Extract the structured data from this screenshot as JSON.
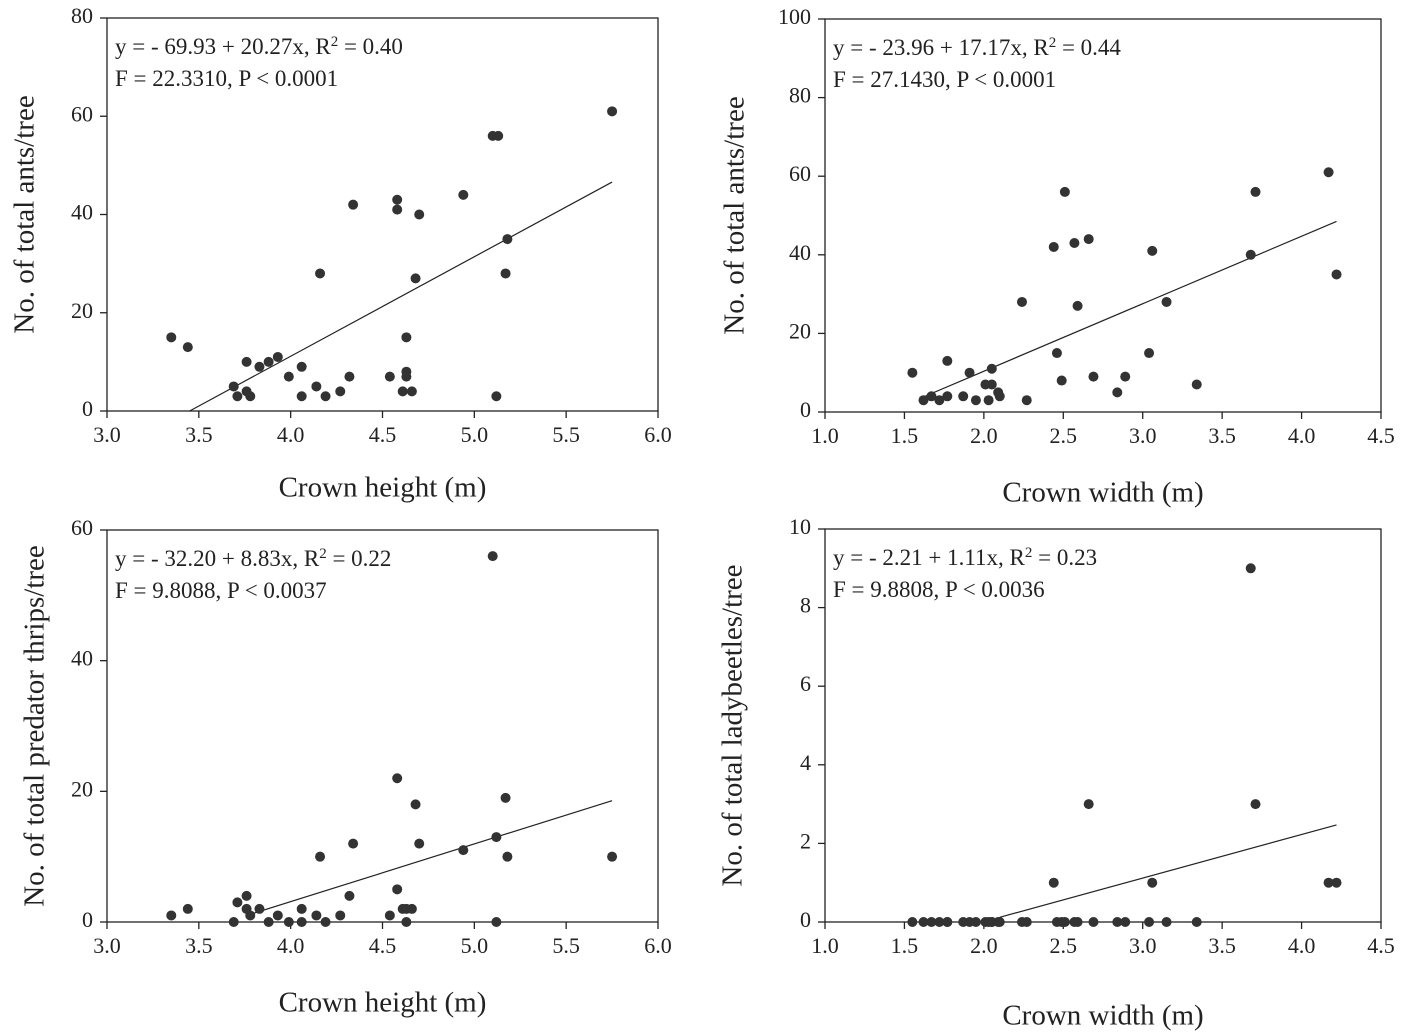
{
  "chart_data": [
    {
      "type": "scatter",
      "xlabel": "Crown height (m)",
      "ylabel": "No. of  total ants/tree",
      "equation": [
        "y = - 69.93 + 20.27x, R",
        "2",
        " = 0.40"
      ],
      "stats": "F = 22.3310, P < 0.0001",
      "xlim": [
        3,
        6
      ],
      "ylim": [
        0,
        80
      ],
      "xticks": [
        {
          "value": 3,
          "label": "3.0"
        },
        {
          "value": 3.5,
          "label": "3.5"
        },
        {
          "value": 4,
          "label": "4.0"
        },
        {
          "value": 4.5,
          "label": "4.5"
        },
        {
          "value": 5,
          "label": "5.0"
        },
        {
          "value": 5.5,
          "label": "5.5"
        },
        {
          "value": 6,
          "label": "6.0"
        }
      ],
      "yticks": [
        0,
        20,
        40,
        60,
        80
      ],
      "color": "#333333",
      "x": [
        3.35,
        3.44,
        3.69,
        3.71,
        3.76,
        3.76,
        3.78,
        3.83,
        3.88,
        3.93,
        3.99,
        4.06,
        4.06,
        4.14,
        4.16,
        4.19,
        4.27,
        4.32,
        4.34,
        4.54,
        4.58,
        4.58,
        4.61,
        4.63,
        4.63,
        4.63,
        4.66,
        4.68,
        4.7,
        4.94,
        5.1,
        5.13,
        5.12,
        5.17,
        5.18,
        5.75
      ],
      "values": [
        15,
        13,
        5,
        3,
        10,
        4,
        3,
        9,
        10,
        11,
        7,
        9,
        3,
        5,
        28,
        3,
        4,
        7,
        42,
        7,
        43,
        41,
        4,
        15,
        7,
        8,
        4,
        27,
        40,
        44,
        56,
        56,
        3,
        28,
        35,
        61
      ],
      "fit_line": {
        "x": [
          3.45,
          5.75
        ],
        "y": [
          0,
          46.6
        ]
      }
    },
    {
      "type": "scatter",
      "xlabel": "Crown width (m)",
      "ylabel": "No. of  total ants/tree",
      "equation": [
        "y = - 23.96 + 17.17x, R",
        "2",
        " = 0.44"
      ],
      "stats": "F = 27.1430, P <  0.0001",
      "xlim": [
        1,
        4.5
      ],
      "ylim": [
        0,
        100
      ],
      "xticks": [
        {
          "value": 1,
          "label": "1.0"
        },
        {
          "value": 1.5,
          "label": "1.5"
        },
        {
          "value": 2,
          "label": "2.0"
        },
        {
          "value": 2.5,
          "label": "2.5"
        },
        {
          "value": 3,
          "label": "3.0"
        },
        {
          "value": 3.5,
          "label": "3.5"
        },
        {
          "value": 4,
          "label": "4.0"
        },
        {
          "value": 4.5,
          "label": "4.5"
        }
      ],
      "yticks": [
        0,
        20,
        40,
        60,
        80,
        100
      ],
      "color": "#333333",
      "x": [
        1.55,
        1.62,
        1.67,
        1.72,
        1.77,
        1.77,
        1.87,
        1.91,
        1.95,
        2.01,
        2.03,
        2.05,
        2.05,
        2.09,
        2.1,
        2.24,
        2.27,
        2.44,
        2.46,
        2.49,
        2.51,
        2.57,
        2.59,
        2.66,
        2.69,
        2.84,
        2.89,
        3.04,
        3.06,
        3.15,
        3.34,
        3.68,
        3.71,
        4.17,
        4.22
      ],
      "values": [
        10,
        3,
        4,
        3,
        4,
        13,
        4,
        10,
        3,
        7,
        3,
        7,
        11,
        5,
        4,
        28,
        3,
        42,
        15,
        8,
        56,
        43,
        27,
        44,
        9,
        5,
        9,
        15,
        41,
        28,
        7,
        40,
        56,
        61,
        35
      ],
      "fit_line": {
        "x": [
          1.6,
          4.22
        ],
        "y": [
          3.5,
          48.5
        ]
      }
    },
    {
      "type": "scatter",
      "xlabel": "Crown height (m)",
      "ylabel": "No. of  total predator thrips/tree",
      "equation": [
        "y = - 32.20 + 8.83x, R",
        "2",
        " =  0.22"
      ],
      "stats": "F = 9.8088, P < 0.0037",
      "xlim": [
        3,
        6
      ],
      "ylim": [
        0,
        60
      ],
      "xticks": [
        {
          "value": 3,
          "label": "3.0"
        },
        {
          "value": 3.5,
          "label": "3.5"
        },
        {
          "value": 4,
          "label": "4.0"
        },
        {
          "value": 4.5,
          "label": "4.5"
        },
        {
          "value": 5,
          "label": "5.0"
        },
        {
          "value": 5.5,
          "label": "5.5"
        },
        {
          "value": 6,
          "label": "6.0"
        }
      ],
      "yticks": [
        0,
        20,
        40,
        60
      ],
      "color": "#333333",
      "x": [
        3.35,
        3.44,
        3.69,
        3.71,
        3.76,
        3.76,
        3.78,
        3.83,
        3.88,
        3.93,
        3.99,
        4.06,
        4.06,
        4.14,
        4.16,
        4.19,
        4.27,
        4.32,
        4.34,
        4.54,
        4.58,
        4.58,
        4.61,
        4.63,
        4.63,
        4.66,
        4.68,
        4.7,
        4.94,
        5.1,
        5.12,
        5.12,
        5.17,
        5.18,
        5.75
      ],
      "values": [
        1,
        2,
        0,
        3,
        4,
        2,
        1,
        2,
        0,
        1,
        0,
        2,
        0,
        1,
        10,
        0,
        1,
        4,
        12,
        1,
        22,
        5,
        2,
        0,
        2,
        2,
        18,
        12,
        11,
        56,
        13,
        0,
        19,
        10,
        10
      ],
      "fit_line": {
        "x": [
          3.8,
          5.75
        ],
        "y": [
          1.35,
          18.57
        ]
      }
    },
    {
      "type": "scatter",
      "xlabel": "Crown width (m)",
      "ylabel": "No. of  total ladybeetles/tree",
      "equation": [
        "y =  - 2.21 +  1.11x, R",
        "2",
        " = 0.23"
      ],
      "stats": "F = 9.8808, P < 0.0036",
      "xlim": [
        1,
        4.5
      ],
      "ylim": [
        0,
        10
      ],
      "xticks": [
        {
          "value": 1,
          "label": "1.0"
        },
        {
          "value": 1.5,
          "label": "1.5"
        },
        {
          "value": 2,
          "label": "2.0"
        },
        {
          "value": 2.5,
          "label": "2.5"
        },
        {
          "value": 3,
          "label": "3.0"
        },
        {
          "value": 3.5,
          "label": "3.5"
        },
        {
          "value": 4,
          "label": "4.0"
        },
        {
          "value": 4.5,
          "label": "4.5"
        }
      ],
      "yticks": [
        0,
        2,
        4,
        6,
        8,
        10
      ],
      "color": "#333333",
      "x": [
        1.55,
        1.62,
        1.67,
        1.72,
        1.77,
        1.77,
        1.87,
        1.91,
        1.95,
        2.01,
        2.03,
        2.05,
        2.05,
        2.09,
        2.1,
        2.24,
        2.27,
        2.44,
        2.46,
        2.49,
        2.51,
        2.57,
        2.59,
        2.66,
        2.69,
        2.84,
        2.89,
        3.04,
        3.06,
        3.15,
        3.34,
        3.68,
        3.71,
        4.17,
        4.22
      ],
      "values": [
        0,
        0,
        0,
        0,
        0,
        0,
        0,
        0,
        0,
        0,
        0,
        0,
        0,
        0,
        0,
        0,
        0,
        1,
        0,
        0,
        0,
        0,
        0,
        3,
        0,
        0,
        0,
        0,
        1,
        0,
        0,
        9,
        3,
        1,
        1
      ],
      "fit_line": {
        "x": [
          2.1,
          4.22
        ],
        "y": [
          0.12,
          2.47
        ]
      }
    }
  ]
}
